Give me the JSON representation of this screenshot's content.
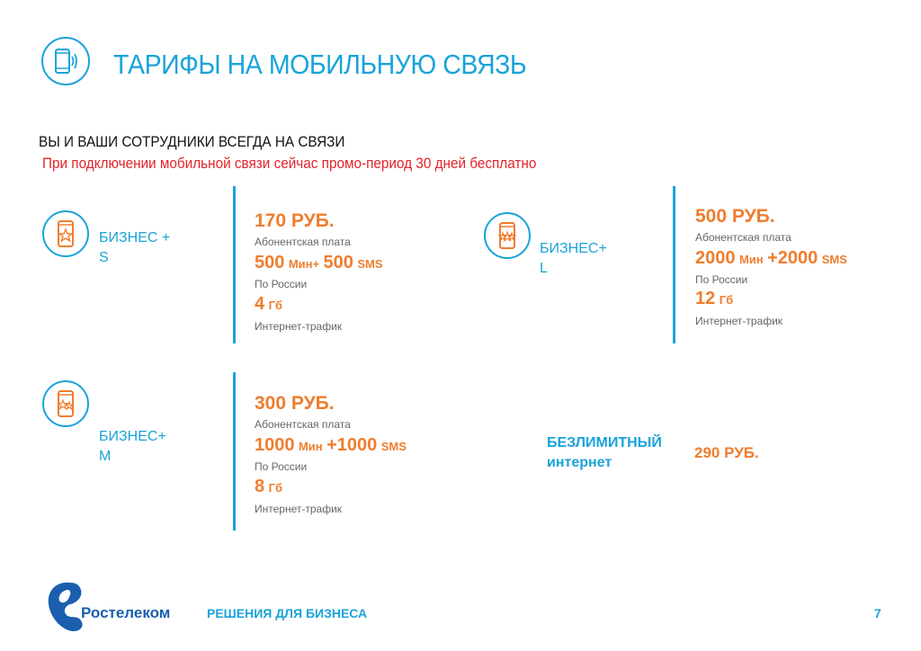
{
  "header": {
    "title": "ТАРИФЫ НА МОБИЛЬНУЮ СВЯЗЬ",
    "subtitle": "ВЫ И ВАШИ СОТРУДНИКИ ВСЕГДА НА СВЯЗИ",
    "promo": "При подключении мобильной связи сейчас  промо-период 30 дней бесплатно",
    "icon": "mobile-phone-icon"
  },
  "plans": [
    {
      "name": "БИЗНЕС +\nS",
      "price": "170 РУБ.",
      "fee_label": "Абонентская плата",
      "minutes": "500",
      "minutes_unit": "Мин+",
      "sms": "500",
      "sms_unit": "SMS",
      "region_label": "По России",
      "gb": "4",
      "gb_unit": "Гб",
      "traffic_label": "Интернет-трафик",
      "icon": "phone-star-icon"
    },
    {
      "name": "БИЗНЕС+\nL",
      "price": "500 РУБ.",
      "fee_label": "Абонентская плата",
      "minutes": "2000",
      "minutes_unit": "Мин",
      "sms": "+2000",
      "sms_unit": "SMS",
      "region_label": "По России",
      "gb": "12",
      "gb_unit": "Гб",
      "traffic_label": "Интернет-трафик",
      "icon": "phone-stars-icon"
    },
    {
      "name": "БИЗНЕС+\nM",
      "price": "300 РУБ.",
      "fee_label": "Абонентская плата",
      "minutes": "1000",
      "minutes_unit": "Мин",
      "sms": "+1000",
      "sms_unit": "SMS",
      "region_label": "По России",
      "gb": "8",
      "gb_unit": "Гб",
      "traffic_label": "Интернет-трафик",
      "icon": "phone-two-stars-icon"
    }
  ],
  "unlimited": {
    "label": "БЕЗЛИМИТНЫЙ\nинтернет",
    "price": "290 РУБ."
  },
  "footer": {
    "brand": "Ростелеком",
    "tagline": "РЕШЕНИЯ ДЛЯ БИЗНЕСА",
    "page": "7"
  },
  "colors": {
    "accent": "#1aa3d9",
    "orange": "#ef7d2e",
    "red": "#e3232a",
    "brand": "#1a5fae"
  }
}
